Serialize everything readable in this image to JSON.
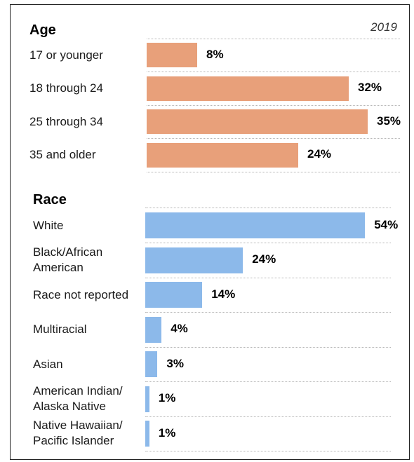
{
  "year_label": "2019",
  "chart_data": [
    {
      "type": "bar",
      "orientation": "horizontal",
      "title": "Age",
      "color": "#e8a07a",
      "unit": "%",
      "categories": [
        "17 or younger",
        "18 through 24",
        "25 through 34",
        "35 and older"
      ],
      "values": [
        8,
        32,
        35,
        24
      ],
      "value_labels": [
        "8%",
        "32%",
        "35%",
        "24%"
      ]
    },
    {
      "type": "bar",
      "orientation": "horizontal",
      "title": "Race",
      "color": "#8cb9ea",
      "unit": "%",
      "categories": [
        "White",
        "Black/African\nAmerican",
        "Race not reported",
        "Multiracial",
        "Asian",
        "American Indian/\nAlaska Native",
        "Native Hawaiian/\nPacific Islander"
      ],
      "values": [
        54,
        24,
        14,
        4,
        3,
        1,
        1
      ],
      "value_labels": [
        "54%",
        "24%",
        "14%",
        "4%",
        "3%",
        "1%",
        "1%"
      ]
    }
  ]
}
